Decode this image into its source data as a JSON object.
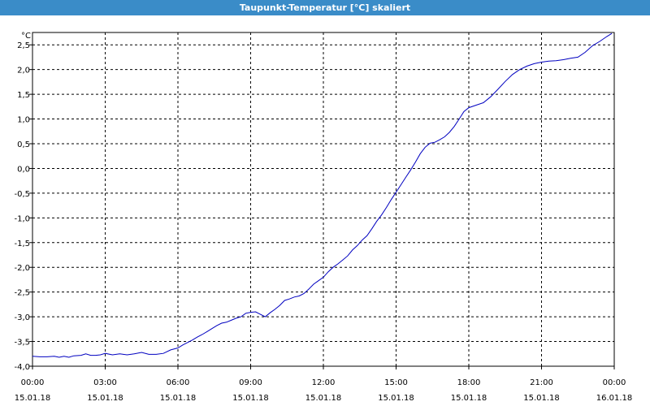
{
  "chart_data": {
    "type": "line",
    "title": "Taupunkt-Temperatur [°C] skaliert",
    "ylabel": "°C",
    "ylim": [
      -4.0,
      2.75
    ],
    "xlim_hours": [
      0,
      24
    ],
    "y_ticks": [
      {
        "value": 2.5,
        "label": "2,5"
      },
      {
        "value": 2.0,
        "label": "2,0"
      },
      {
        "value": 1.5,
        "label": "1,5"
      },
      {
        "value": 1.0,
        "label": "1,0"
      },
      {
        "value": 0.5,
        "label": "0,5"
      },
      {
        "value": 0.0,
        "label": "0,0"
      },
      {
        "value": -0.5,
        "label": "-0,5"
      },
      {
        "value": -1.0,
        "label": "-1,0"
      },
      {
        "value": -1.5,
        "label": "-1,5"
      },
      {
        "value": -2.0,
        "label": "-2,0"
      },
      {
        "value": -2.5,
        "label": "-2,5"
      },
      {
        "value": -3.0,
        "label": "-3,0"
      },
      {
        "value": -3.5,
        "label": "-3,5"
      },
      {
        "value": -4.0,
        "label": "-4,0"
      }
    ],
    "x_ticks": [
      {
        "hour": 0,
        "time": "00:00",
        "date": "15.01.18"
      },
      {
        "hour": 3,
        "time": "03:00",
        "date": "15.01.18"
      },
      {
        "hour": 6,
        "time": "06:00",
        "date": "15.01.18"
      },
      {
        "hour": 9,
        "time": "09:00",
        "date": "15.01.18"
      },
      {
        "hour": 12,
        "time": "12:00",
        "date": "15.01.18"
      },
      {
        "hour": 15,
        "time": "15:00",
        "date": "15.01.18"
      },
      {
        "hour": 18,
        "time": "18:00",
        "date": "15.01.18"
      },
      {
        "hour": 21,
        "time": "21:00",
        "date": "15.01.18"
      },
      {
        "hour": 24,
        "time": "00:00",
        "date": "16.01.18"
      }
    ],
    "grid": true,
    "series": [
      {
        "color": "#0000c0",
        "points": [
          [
            0.0,
            -3.8
          ],
          [
            0.3,
            -3.81
          ],
          [
            0.6,
            -3.81
          ],
          [
            0.9,
            -3.8
          ],
          [
            1.1,
            -3.82
          ],
          [
            1.3,
            -3.8
          ],
          [
            1.5,
            -3.82
          ],
          [
            1.7,
            -3.79
          ],
          [
            2.0,
            -3.78
          ],
          [
            2.2,
            -3.75
          ],
          [
            2.4,
            -3.78
          ],
          [
            2.6,
            -3.78
          ],
          [
            2.8,
            -3.77
          ],
          [
            3.0,
            -3.74
          ],
          [
            3.3,
            -3.77
          ],
          [
            3.6,
            -3.75
          ],
          [
            3.9,
            -3.77
          ],
          [
            4.2,
            -3.75
          ],
          [
            4.5,
            -3.72
          ],
          [
            4.8,
            -3.76
          ],
          [
            5.1,
            -3.76
          ],
          [
            5.4,
            -3.74
          ],
          [
            5.7,
            -3.67
          ],
          [
            6.0,
            -3.63
          ],
          [
            6.2,
            -3.57
          ],
          [
            6.4,
            -3.52
          ],
          [
            6.6,
            -3.47
          ],
          [
            6.8,
            -3.41
          ],
          [
            7.0,
            -3.36
          ],
          [
            7.2,
            -3.3
          ],
          [
            7.4,
            -3.24
          ],
          [
            7.6,
            -3.18
          ],
          [
            7.8,
            -3.13
          ],
          [
            8.0,
            -3.11
          ],
          [
            8.2,
            -3.07
          ],
          [
            8.4,
            -3.03
          ],
          [
            8.6,
            -3.0
          ],
          [
            8.8,
            -2.93
          ],
          [
            9.0,
            -2.91
          ],
          [
            9.2,
            -2.9
          ],
          [
            9.4,
            -2.95
          ],
          [
            9.6,
            -3.0
          ],
          [
            9.8,
            -2.92
          ],
          [
            10.0,
            -2.85
          ],
          [
            10.2,
            -2.77
          ],
          [
            10.4,
            -2.67
          ],
          [
            10.6,
            -2.64
          ],
          [
            10.8,
            -2.6
          ],
          [
            11.0,
            -2.58
          ],
          [
            11.2,
            -2.53
          ],
          [
            11.4,
            -2.44
          ],
          [
            11.6,
            -2.34
          ],
          [
            11.8,
            -2.27
          ],
          [
            12.0,
            -2.2
          ],
          [
            12.2,
            -2.09
          ],
          [
            12.4,
            -2.0
          ],
          [
            12.6,
            -1.93
          ],
          [
            12.8,
            -1.85
          ],
          [
            13.0,
            -1.77
          ],
          [
            13.2,
            -1.65
          ],
          [
            13.4,
            -1.56
          ],
          [
            13.6,
            -1.45
          ],
          [
            13.8,
            -1.36
          ],
          [
            14.0,
            -1.22
          ],
          [
            14.2,
            -1.07
          ],
          [
            14.4,
            -0.94
          ],
          [
            14.6,
            -0.79
          ],
          [
            14.8,
            -0.63
          ],
          [
            15.0,
            -0.48
          ],
          [
            15.2,
            -0.33
          ],
          [
            15.4,
            -0.18
          ],
          [
            15.6,
            -0.03
          ],
          [
            15.8,
            0.13
          ],
          [
            16.0,
            0.3
          ],
          [
            16.2,
            0.43
          ],
          [
            16.4,
            0.51
          ],
          [
            16.6,
            0.53
          ],
          [
            16.8,
            0.58
          ],
          [
            17.0,
            0.64
          ],
          [
            17.2,
            0.73
          ],
          [
            17.4,
            0.85
          ],
          [
            17.6,
            1.0
          ],
          [
            17.8,
            1.15
          ],
          [
            18.0,
            1.23
          ],
          [
            18.3,
            1.28
          ],
          [
            18.6,
            1.33
          ],
          [
            18.9,
            1.45
          ],
          [
            19.2,
            1.6
          ],
          [
            19.5,
            1.76
          ],
          [
            19.8,
            1.9
          ],
          [
            20.1,
            2.0
          ],
          [
            20.4,
            2.07
          ],
          [
            20.7,
            2.12
          ],
          [
            21.0,
            2.15
          ],
          [
            21.3,
            2.17
          ],
          [
            21.6,
            2.18
          ],
          [
            21.9,
            2.2
          ],
          [
            22.2,
            2.23
          ],
          [
            22.5,
            2.25
          ],
          [
            22.8,
            2.35
          ],
          [
            23.1,
            2.48
          ],
          [
            23.4,
            2.57
          ],
          [
            23.7,
            2.67
          ],
          [
            23.9,
            2.73
          ]
        ]
      }
    ]
  }
}
